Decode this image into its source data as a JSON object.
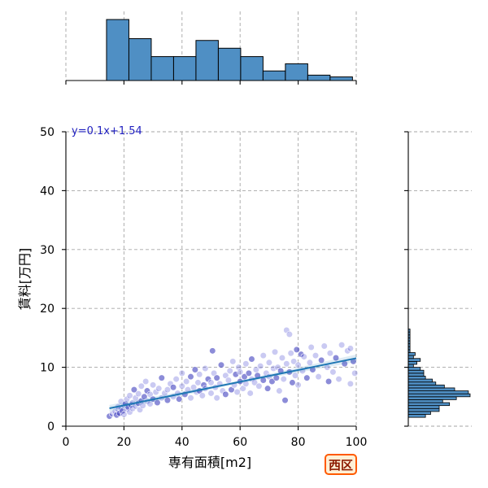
{
  "chart_data": {
    "type": "scatter",
    "title": "",
    "xlabel": "専有面積[m2]",
    "ylabel": "賃料[万円]",
    "xlim": [
      0,
      100
    ],
    "ylim": [
      0,
      50
    ],
    "xticks": [
      0,
      20,
      40,
      60,
      80,
      100
    ],
    "yticks": [
      0,
      10,
      20,
      30,
      40,
      50
    ],
    "grid": true,
    "regression": {
      "slope": 0.1,
      "intercept": 1.54,
      "x_range": [
        15,
        100
      ],
      "label": "y=0.1x+1.54"
    },
    "points": [
      [
        15,
        1.7
      ],
      [
        16,
        2.1
      ],
      [
        17,
        2.5
      ],
      [
        17.5,
        1.9
      ],
      [
        18,
        2.8
      ],
      [
        18,
        3.3
      ],
      [
        18.5,
        2.2
      ],
      [
        19,
        3.0
      ],
      [
        19,
        4.2
      ],
      [
        19.5,
        2.6
      ],
      [
        20,
        3.5
      ],
      [
        20,
        2.0
      ],
      [
        20.5,
        3.8
      ],
      [
        21,
        2.9
      ],
      [
        21,
        4.6
      ],
      [
        21.5,
        3.2
      ],
      [
        22,
        2.4
      ],
      [
        22,
        5.2
      ],
      [
        22.5,
        3.6
      ],
      [
        23,
        4.0
      ],
      [
        23,
        3.0
      ],
      [
        23.5,
        6.2
      ],
      [
        24,
        3.4
      ],
      [
        24,
        4.8
      ],
      [
        25,
        3.9
      ],
      [
        25,
        5.5
      ],
      [
        25.5,
        2.8
      ],
      [
        26,
        4.3
      ],
      [
        26,
        6.8
      ],
      [
        26.5,
        3.5
      ],
      [
        27,
        5.0
      ],
      [
        27.5,
        7.6
      ],
      [
        28,
        4.2
      ],
      [
        28,
        6.0
      ],
      [
        29,
        3.8
      ],
      [
        29,
        5.4
      ],
      [
        30,
        4.6
      ],
      [
        30,
        7.0
      ],
      [
        31,
        5.8
      ],
      [
        31.5,
        4.0
      ],
      [
        32,
        6.4
      ],
      [
        33,
        4.8
      ],
      [
        33,
        8.2
      ],
      [
        34,
        5.6
      ],
      [
        35,
        6.2
      ],
      [
        35,
        4.4
      ],
      [
        36,
        7.2
      ],
      [
        37,
        5.0
      ],
      [
        37,
        6.6
      ],
      [
        38,
        8.0
      ],
      [
        38.5,
        5.6
      ],
      [
        39,
        4.6
      ],
      [
        40,
        6.8
      ],
      [
        40,
        9.0
      ],
      [
        41,
        5.4
      ],
      [
        41.5,
        7.6
      ],
      [
        42,
        6.2
      ],
      [
        43,
        8.4
      ],
      [
        43,
        4.8
      ],
      [
        44,
        6.6
      ],
      [
        44.5,
        9.6
      ],
      [
        45,
        5.8
      ],
      [
        45.5,
        7.4
      ],
      [
        46,
        6.0
      ],
      [
        46,
        8.8
      ],
      [
        47,
        5.2
      ],
      [
        47.5,
        7.0
      ],
      [
        48,
        9.8
      ],
      [
        48,
        6.4
      ],
      [
        49,
        8.0
      ],
      [
        50,
        5.6
      ],
      [
        50,
        7.4
      ],
      [
        50.5,
        12.8
      ],
      [
        51,
        9.0
      ],
      [
        51.5,
        6.6
      ],
      [
        52,
        8.2
      ],
      [
        52,
        4.8
      ],
      [
        53,
        7.2
      ],
      [
        53.5,
        10.4
      ],
      [
        54,
        6.0
      ],
      [
        55,
        8.6
      ],
      [
        55,
        5.4
      ],
      [
        56,
        7.8
      ],
      [
        56.5,
        9.4
      ],
      [
        57,
        6.2
      ],
      [
        57.5,
        11.0
      ],
      [
        58,
        7.0
      ],
      [
        58.5,
        8.8
      ],
      [
        59,
        5.8
      ],
      [
        59.5,
        10.0
      ],
      [
        60,
        7.6
      ],
      [
        60,
        9.2
      ],
      [
        61,
        6.4
      ],
      [
        61.5,
        8.4
      ],
      [
        62,
        10.6
      ],
      [
        62,
        7.2
      ],
      [
        63,
        9.0
      ],
      [
        63.5,
        5.6
      ],
      [
        64,
        8.0
      ],
      [
        64,
        11.4
      ],
      [
        65,
        7.4
      ],
      [
        65.5,
        9.6
      ],
      [
        66,
        8.6
      ],
      [
        66.5,
        6.8
      ],
      [
        67,
        10.2
      ],
      [
        68,
        7.8
      ],
      [
        68,
        12.0
      ],
      [
        69,
        9.0
      ],
      [
        69.5,
        6.4
      ],
      [
        70,
        8.4
      ],
      [
        70,
        10.8
      ],
      [
        71,
        7.6
      ],
      [
        71.5,
        9.8
      ],
      [
        72,
        12.6
      ],
      [
        72.5,
        8.2
      ],
      [
        73,
        10.0
      ],
      [
        73.5,
        6.0
      ],
      [
        74,
        9.4
      ],
      [
        74.5,
        11.6
      ],
      [
        75,
        8.0
      ],
      [
        75.5,
        4.4
      ],
      [
        76,
        10.6
      ],
      [
        76,
        16.3
      ],
      [
        77,
        9.2
      ],
      [
        77,
        15.6
      ],
      [
        77.5,
        12.4
      ],
      [
        78,
        7.4
      ],
      [
        78.5,
        11.0
      ],
      [
        79,
        8.6
      ],
      [
        79.5,
        13.0
      ],
      [
        80,
        10.4
      ],
      [
        80,
        7.0
      ],
      [
        81,
        12.2
      ],
      [
        81.5,
        9.4
      ],
      [
        82,
        11.8
      ],
      [
        83,
        8.2
      ],
      [
        84,
        10.8
      ],
      [
        84.5,
        13.4
      ],
      [
        85,
        9.6
      ],
      [
        86,
        12.0
      ],
      [
        87,
        8.4
      ],
      [
        88,
        11.2
      ],
      [
        89,
        13.6
      ],
      [
        90,
        10.0
      ],
      [
        90.5,
        7.6
      ],
      [
        91,
        12.4
      ],
      [
        92,
        9.2
      ],
      [
        93,
        11.6
      ],
      [
        94,
        8.0
      ],
      [
        95,
        13.8
      ],
      [
        96,
        10.6
      ],
      [
        97,
        12.8
      ],
      [
        98,
        7.2
      ],
      [
        99,
        11.0
      ],
      [
        99.5,
        9.0
      ],
      [
        98,
        13.2
      ]
    ],
    "x_histogram": {
      "bin_edges": [
        14,
        21.7,
        29.4,
        37.1,
        44.8,
        52.5,
        60.2,
        67.9,
        75.6,
        83.3,
        91,
        98.7,
        100
      ],
      "counts": [
        102,
        70,
        40,
        40,
        67,
        54,
        40,
        16,
        28,
        9,
        6,
        0
      ]
    },
    "y_histogram": {
      "bin_edges": [
        1.5,
        2.0,
        2.5,
        3.0,
        3.5,
        4.0,
        4.5,
        5.0,
        5.5,
        6.0,
        6.5,
        7.0,
        7.5,
        8.0,
        8.5,
        9.0,
        9.5,
        10.0,
        10.5,
        11.0,
        11.5,
        12.0,
        12.5,
        13.0,
        13.5,
        14.0,
        14.5,
        15.0,
        15.5,
        16.0,
        16.5
      ],
      "counts": [
        10,
        13,
        18,
        18,
        24,
        20,
        28,
        36,
        35,
        27,
        21,
        16,
        14,
        10,
        9,
        9,
        7,
        3,
        5,
        7,
        3,
        4,
        1,
        1,
        1,
        1,
        1,
        1,
        1,
        1
      ]
    }
  },
  "badge": {
    "label": "西区"
  }
}
